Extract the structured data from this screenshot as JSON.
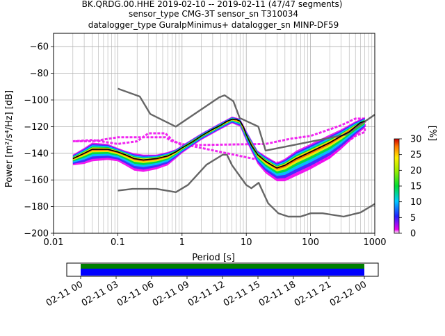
{
  "title": {
    "line1": "BK.QRDG.00.HHE   2019-02-10 -- 2019-02-11  (47/47 segments)",
    "line2": "sensor_type CMG-3T sensor_sn T310034",
    "line3": "datalogger_type GuralpMinimus+ datalogger_sn MINP-DF59"
  },
  "chart_data": {
    "type": "heatmap",
    "xlabel": "Period [s]",
    "ylabel": "Power [m²/s⁴/Hz] [dB]",
    "xscale": "log",
    "xlim": [
      0.01,
      1000
    ],
    "ylim": [
      -200,
      -50
    ],
    "grid": true,
    "x_ticks": [
      "0.01",
      "0.1",
      "1",
      "10",
      "100",
      "1000"
    ],
    "y_ticks": [
      "−200",
      "−180",
      "−160",
      "−140",
      "−120",
      "−100",
      "−80",
      "−60"
    ],
    "series": [
      {
        "name": "",
        "role": "NHNM",
        "color": "#666666",
        "points": [
          [
            0.1,
            -91.5
          ],
          [
            0.22,
            -97.4
          ],
          [
            0.32,
            -110.5
          ],
          [
            0.8,
            -120
          ],
          [
            3.8,
            -98
          ],
          [
            4.6,
            -96.5
          ],
          [
            6.3,
            -101
          ],
          [
            7.9,
            -113.5
          ],
          [
            15.4,
            -120
          ],
          [
            20,
            -138
          ],
          [
            354.8,
            -126
          ],
          [
            1000,
            -111
          ]
        ]
      },
      {
        "name": "",
        "role": "NLNM",
        "color": "#666666",
        "points": [
          [
            0.1,
            -168
          ],
          [
            0.17,
            -166.7
          ],
          [
            0.4,
            -166.7
          ],
          [
            0.8,
            -169.2
          ],
          [
            1.24,
            -163.7
          ],
          [
            2.4,
            -148.6
          ],
          [
            4.3,
            -141.1
          ],
          [
            5,
            -141.1
          ],
          [
            6,
            -149
          ],
          [
            10,
            -163.8
          ],
          [
            12,
            -166.2
          ],
          [
            15.6,
            -162.1
          ],
          [
            21.9,
            -177.5
          ],
          [
            31.6,
            -185
          ],
          [
            45,
            -187.5
          ],
          [
            70,
            -187.5
          ],
          [
            101,
            -185
          ],
          [
            154,
            -185
          ],
          [
            328,
            -187.5
          ],
          [
            600,
            -184.4
          ],
          [
            1000,
            -178
          ]
        ]
      },
      {
        "name": "",
        "role": "mean",
        "color": "#000000",
        "points": [
          [
            0.02,
            -144
          ],
          [
            0.03,
            -140
          ],
          [
            0.04,
            -137
          ],
          [
            0.07,
            -137
          ],
          [
            0.1,
            -139
          ],
          [
            0.13,
            -141
          ],
          [
            0.18,
            -144
          ],
          [
            0.25,
            -145
          ],
          [
            0.4,
            -144
          ],
          [
            0.6,
            -142
          ],
          [
            0.8,
            -139
          ],
          [
            1,
            -136
          ],
          [
            1.5,
            -131
          ],
          [
            2,
            -127
          ],
          [
            3,
            -122
          ],
          [
            4,
            -119
          ],
          [
            5,
            -116
          ],
          [
            6,
            -114.5
          ],
          [
            7,
            -114.5
          ],
          [
            8,
            -116
          ],
          [
            9,
            -120
          ],
          [
            10,
            -126
          ],
          [
            12,
            -134
          ],
          [
            15,
            -141
          ],
          [
            20,
            -146
          ],
          [
            25,
            -149
          ],
          [
            30,
            -151
          ],
          [
            40,
            -149
          ],
          [
            60,
            -144
          ],
          [
            100,
            -139
          ],
          [
            200,
            -132
          ],
          [
            300,
            -127
          ],
          [
            400,
            -124
          ],
          [
            500,
            -120
          ],
          [
            600,
            -117
          ],
          [
            700,
            -116
          ]
        ]
      }
    ],
    "density_band": {
      "colormap": "pqlx",
      "points": [
        [
          0.02,
          -144,
          3,
          5
        ],
        [
          0.03,
          -140,
          4,
          8
        ],
        [
          0.04,
          -137,
          5,
          9
        ],
        [
          0.07,
          -137,
          4,
          8
        ],
        [
          0.1,
          -139,
          3,
          7
        ],
        [
          0.13,
          -141,
          3,
          8
        ],
        [
          0.18,
          -144,
          4,
          9
        ],
        [
          0.25,
          -145,
          4,
          9
        ],
        [
          0.4,
          -144,
          3,
          8
        ],
        [
          0.6,
          -142,
          3,
          7
        ],
        [
          0.8,
          -139,
          2,
          5
        ],
        [
          1,
          -136,
          2,
          4
        ],
        [
          2,
          -127,
          2,
          3
        ],
        [
          4,
          -119,
          2,
          3
        ],
        [
          6,
          -114.5,
          2,
          3
        ],
        [
          8,
          -116,
          2,
          4
        ],
        [
          10,
          -126,
          3,
          5
        ],
        [
          15,
          -141,
          3,
          7
        ],
        [
          20,
          -146,
          4,
          9
        ],
        [
          30,
          -151,
          4,
          10
        ],
        [
          40,
          -149,
          5,
          12
        ],
        [
          60,
          -144,
          6,
          13
        ],
        [
          100,
          -139,
          6,
          13
        ],
        [
          200,
          -132,
          6,
          12
        ],
        [
          300,
          -127,
          5,
          10
        ],
        [
          500,
          -120,
          4,
          7
        ],
        [
          700,
          -116,
          3,
          5
        ]
      ]
    },
    "outlier_band": {
      "color": "#ee00ee",
      "points": [
        [
          0.02,
          -131,
          -131
        ],
        [
          0.04,
          -130,
          -131
        ],
        [
          0.1,
          -133,
          -128
        ],
        [
          0.2,
          -131,
          -128
        ],
        [
          0.3,
          -125,
          -128
        ],
        [
          0.55,
          -125,
          -128
        ],
        [
          0.7,
          -130,
          -131
        ],
        [
          1,
          -134,
          -133
        ],
        [
          20,
          -133,
          -146
        ],
        [
          50,
          -129,
          -148
        ],
        [
          100,
          -127,
          -150
        ],
        [
          200,
          -122,
          -143
        ],
        [
          300,
          -119,
          -135
        ],
        [
          500,
          -114,
          -127
        ],
        [
          700,
          -114,
          -124
        ]
      ]
    },
    "colorbar": {
      "label": "[%]",
      "min": 0,
      "max": 30,
      "ticks": [
        "0",
        "5",
        "10",
        "15",
        "20",
        "25",
        "30"
      ]
    }
  },
  "timeline": {
    "tick_labels": [
      "02-11 00",
      "02-11 03",
      "02-11 06",
      "02-11 09",
      "02-11 12",
      "02-11 15",
      "02-11 18",
      "02-11 21",
      "02-12 00"
    ],
    "coverage_color_top": "#008000",
    "coverage_color_bottom": "#0000ff"
  }
}
